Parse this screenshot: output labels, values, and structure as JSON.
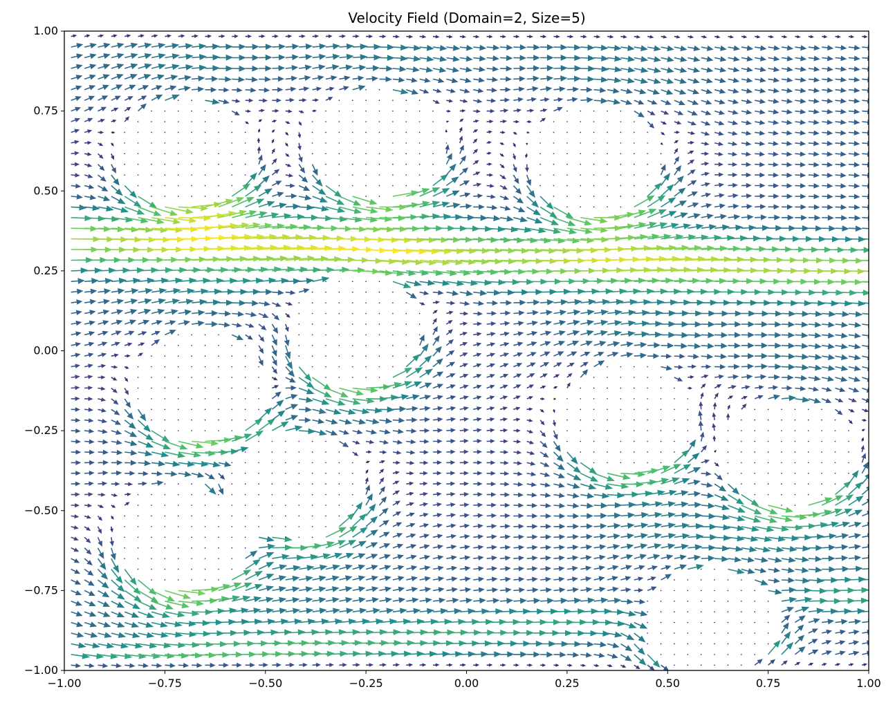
{
  "chart_data": {
    "type": "quiver",
    "title": "Velocity Field (Domain=2, Size=5)",
    "xlabel": "",
    "ylabel": "",
    "xlim": [
      -1.0,
      1.0
    ],
    "ylim": [
      -1.0,
      1.0
    ],
    "x_ticks": [
      -1.0,
      -0.75,
      -0.5,
      -0.25,
      0.0,
      0.25,
      0.5,
      0.75,
      1.0
    ],
    "x_tick_labels": [
      "−1.00",
      "−0.75",
      "−0.50",
      "−0.25",
      "0.00",
      "0.25",
      "0.50",
      "0.75",
      "1.00"
    ],
    "y_ticks": [
      1.0,
      0.75,
      0.5,
      0.25,
      0.0,
      -0.25,
      -0.5,
      -0.75,
      -1.0
    ],
    "y_tick_labels": [
      "1.00",
      "0.75",
      "0.50",
      "0.25",
      "0.00",
      "−0.25",
      "−0.50",
      "−0.75",
      "−1.00"
    ],
    "grid": false,
    "colormap": "viridis",
    "colormap_stops": [
      "#440154",
      "#3b528b",
      "#21918c",
      "#5ec962",
      "#fde725"
    ],
    "inflow_speed": 0.6,
    "obstacles": [
      {
        "cx": -0.7,
        "cy": 0.62,
        "r": 0.17
      },
      {
        "cx": -0.22,
        "cy": 0.65,
        "r": 0.17
      },
      {
        "cx": 0.32,
        "cy": 0.6,
        "r": 0.17
      },
      {
        "cx": -0.28,
        "cy": 0.07,
        "r": 0.17
      },
      {
        "cx": -0.66,
        "cy": -0.11,
        "r": 0.17
      },
      {
        "cx": 0.4,
        "cy": -0.21,
        "r": 0.17
      },
      {
        "cx": 0.8,
        "cy": -0.32,
        "r": 0.17
      },
      {
        "cx": -0.43,
        "cy": -0.42,
        "r": 0.17
      },
      {
        "cx": -0.71,
        "cy": -0.58,
        "r": 0.17
      },
      {
        "cx": 0.6,
        "cy": -0.85,
        "r": 0.17
      }
    ],
    "jets": [
      {
        "y0": 0.3,
        "y_slope": -0.05,
        "width": 0.09,
        "speed": 1.0
      },
      {
        "y0": -0.88,
        "y_slope": 0.12,
        "width": 0.07,
        "speed": 0.55
      }
    ]
  }
}
